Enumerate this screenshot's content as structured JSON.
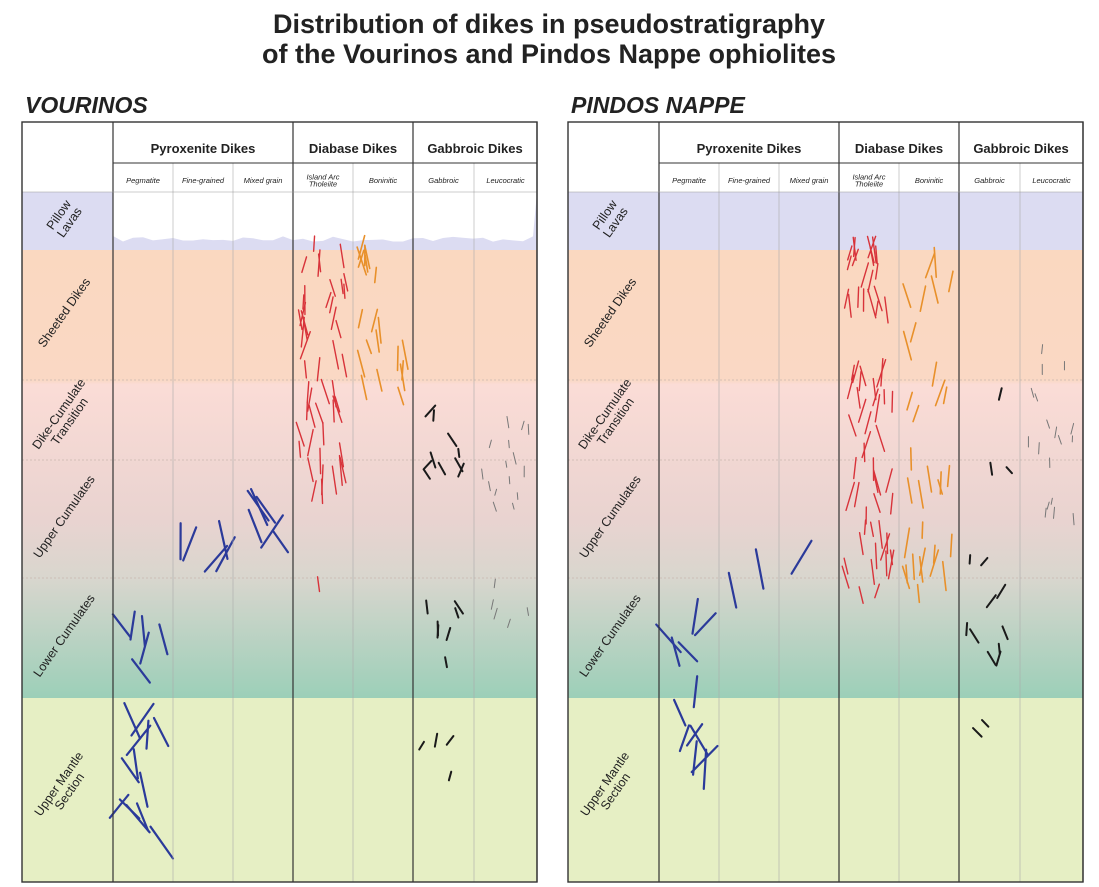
{
  "title": [
    "Distribution of dikes in pseudostratigraphy",
    "of the Vourinos and Pindos Nappe ophiolites"
  ],
  "panels": [
    {
      "name": "VOURINOS",
      "groups": [
        {
          "name": "Pyroxenite Dikes",
          "subcolumns": [
            [
              "Pegmatite"
            ],
            [
              "Fine-grained"
            ],
            [
              "Mixed grain"
            ]
          ]
        },
        {
          "name": "Diabase Dikes",
          "subcolumns": [
            [
              "Island Arc",
              "Tholeiite"
            ],
            [
              "Boninitic"
            ]
          ]
        },
        {
          "name": "Gabbroic Dikes",
          "subcolumns": [
            [
              "Gabbroic"
            ],
            [
              "Leucocratic"
            ]
          ]
        }
      ],
      "rows": [
        [
          "Pillow",
          "Lavas"
        ],
        [
          "Sheeted Dikes"
        ],
        [
          "Dike-Cumulate",
          "Transition"
        ],
        [
          "Upper Cumulates"
        ],
        [
          "Lower Cumulates"
        ],
        [
          "Upper Mantle",
          "Section"
        ]
      ]
    },
    {
      "name": "PINDOS NAPPE",
      "groups": [
        {
          "name": "Pyroxenite Dikes",
          "subcolumns": [
            [
              "Pegmatite"
            ],
            [
              "Fine-grained"
            ],
            [
              "Mixed grain"
            ]
          ]
        },
        {
          "name": "Diabase Dikes",
          "subcolumns": [
            [
              "Island Arc",
              "Tholeiite"
            ],
            [
              "Boninitic"
            ]
          ]
        },
        {
          "name": "Gabbroic Dikes",
          "subcolumns": [
            [
              "Gabbroic"
            ],
            [
              "Leucocratic"
            ]
          ]
        }
      ],
      "rows": [
        [
          "Pillow",
          "Lavas"
        ],
        [
          "Sheeted Dikes"
        ],
        [
          "Dike-Cumulate",
          "Transition"
        ],
        [
          "Upper Cumulates"
        ],
        [
          "Lower Cumulates"
        ],
        [
          "Upper Mantle",
          "Section"
        ]
      ]
    }
  ]
}
